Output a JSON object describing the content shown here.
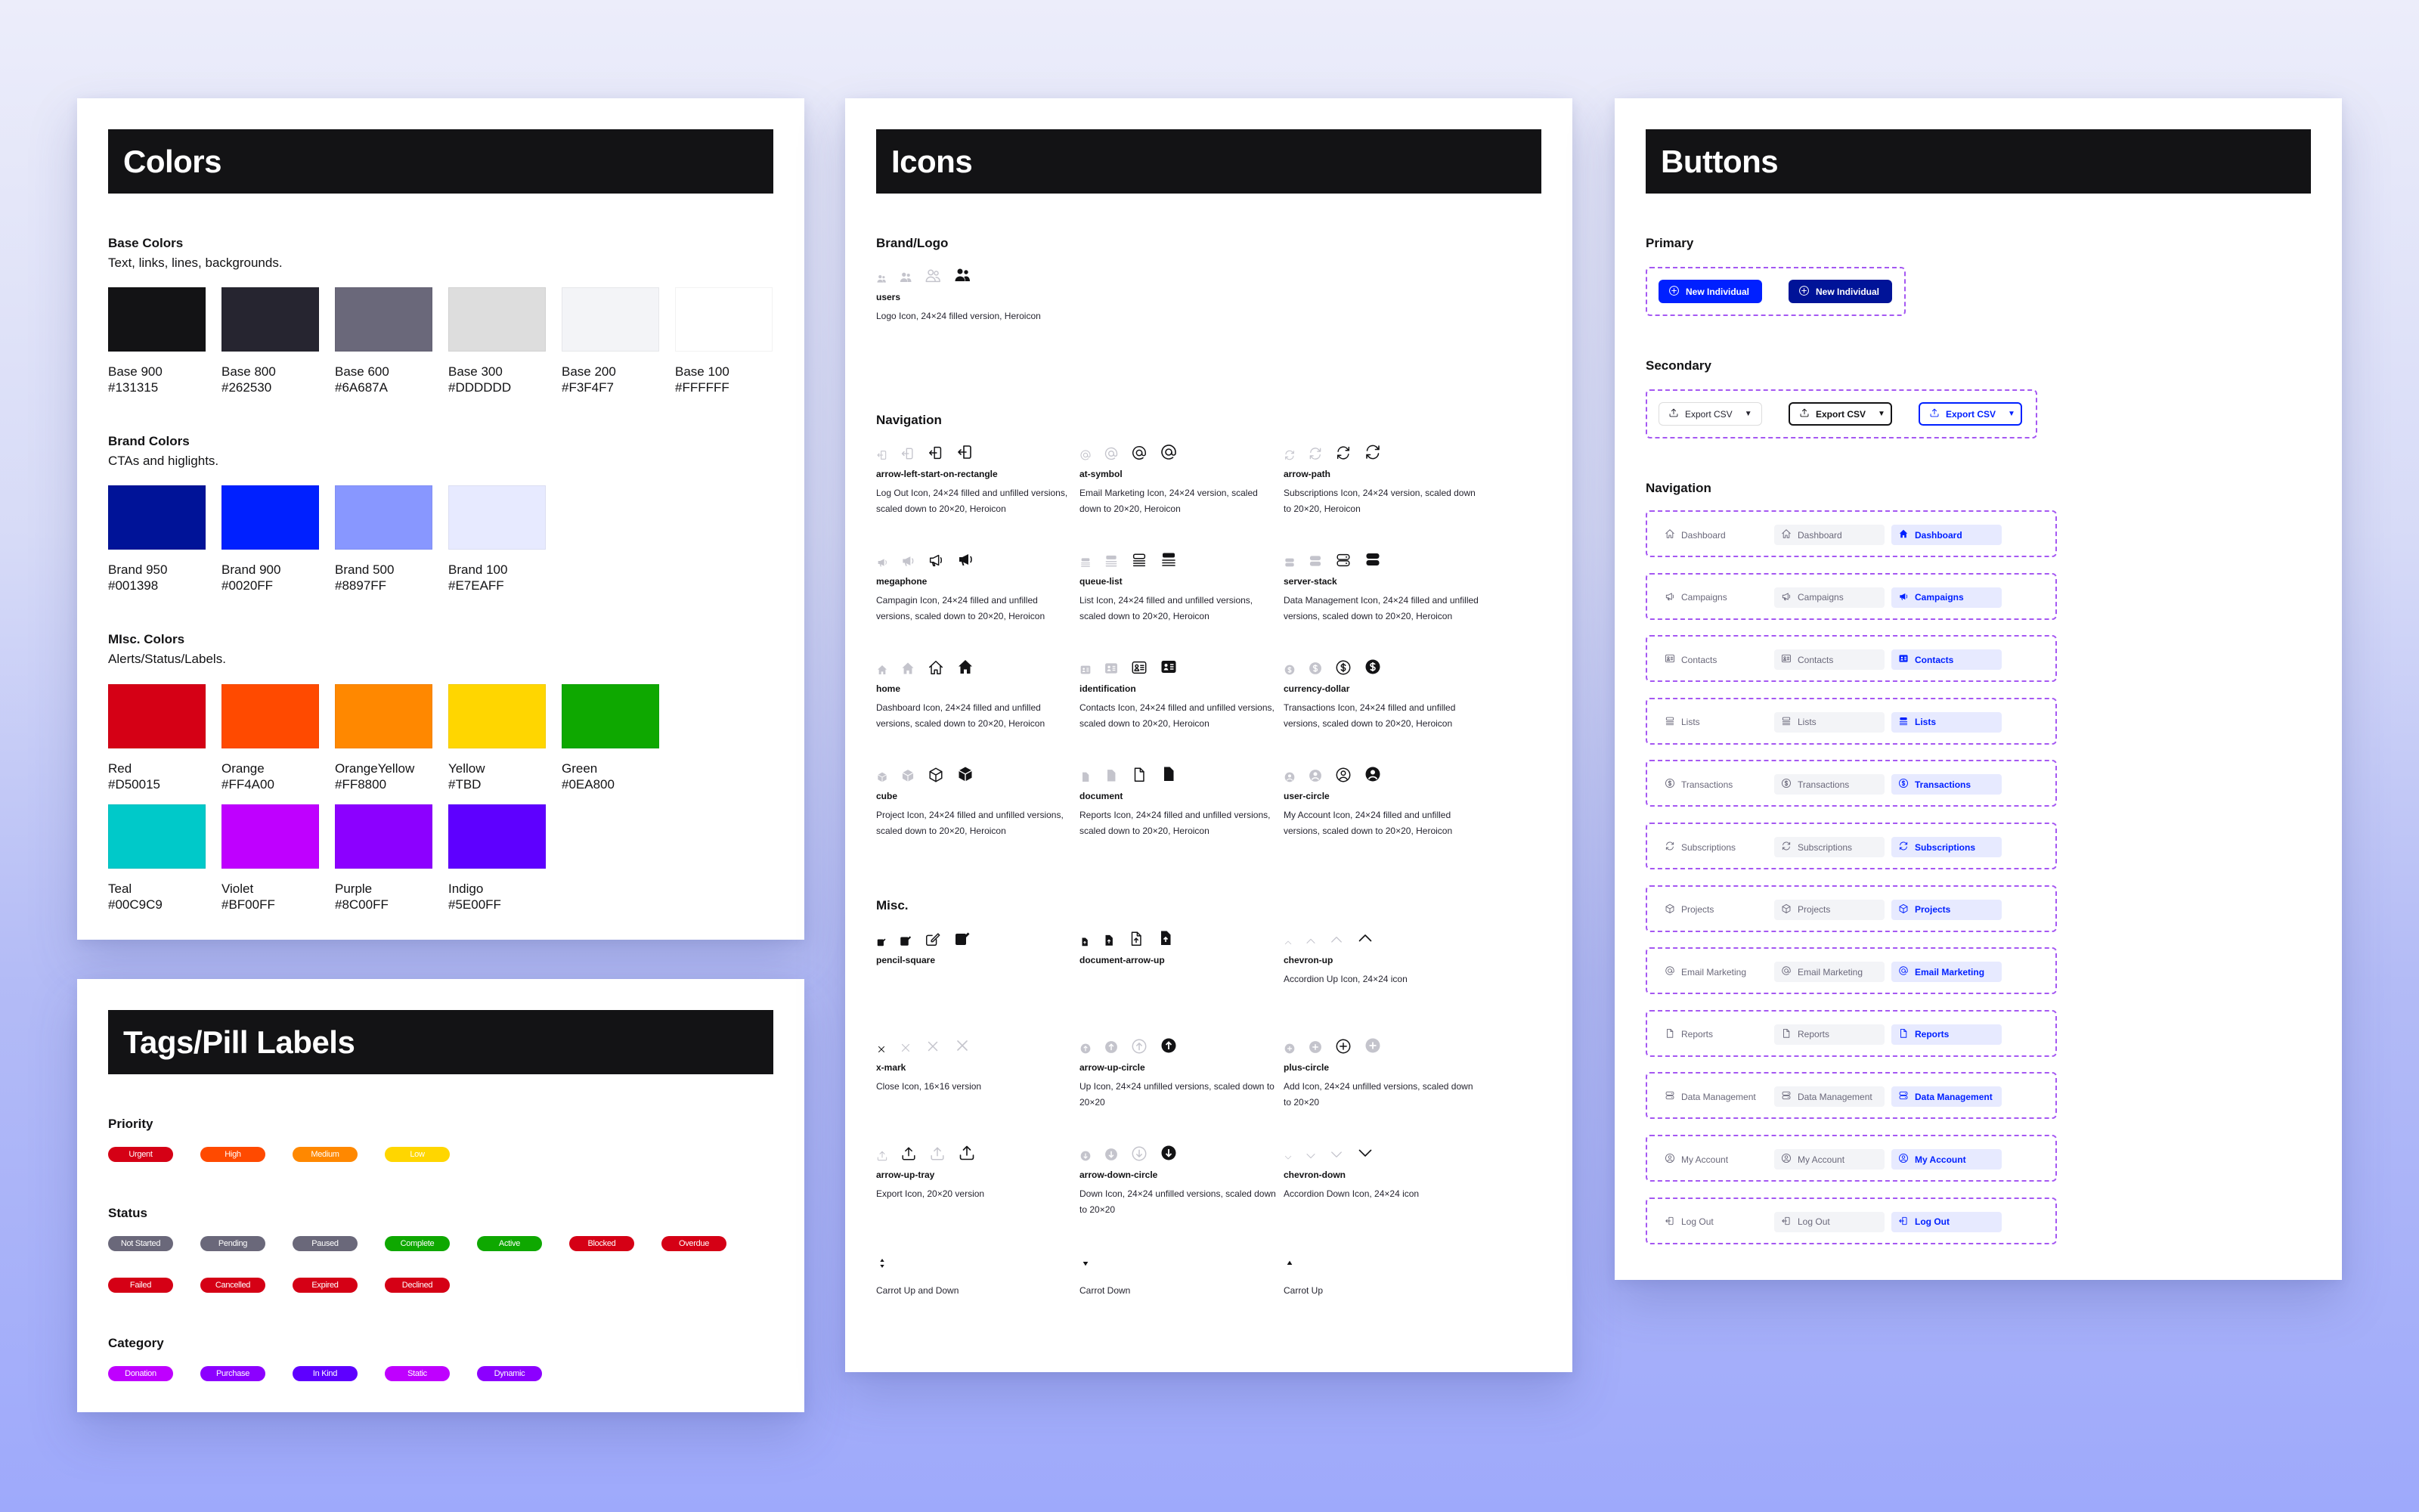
{
  "colors_panel": {
    "title": "Colors",
    "base": {
      "title": "Base Colors",
      "subtitle": "Text, links, lines, backgrounds.",
      "swatches": [
        {
          "name": "Base 900",
          "hex": "#131315"
        },
        {
          "name": "Base 800",
          "hex": "#262530"
        },
        {
          "name": "Base 600",
          "hex": "#6A687A"
        },
        {
          "name": "Base 300",
          "hex": "#DDDDDD"
        },
        {
          "name": "Base 200",
          "hex": "#F3F4F7"
        },
        {
          "name": "Base 100",
          "hex": "#FFFFFF"
        }
      ]
    },
    "brand": {
      "title": "Brand Colors",
      "subtitle": "CTAs and higlights.",
      "swatches": [
        {
          "name": "Brand 950",
          "hex": "#001398"
        },
        {
          "name": "Brand 900",
          "hex": "#0020FF"
        },
        {
          "name": "Brand 500",
          "hex": "#8897FF"
        },
        {
          "name": "Brand 100",
          "hex": "#E7EAFF"
        }
      ]
    },
    "misc": {
      "title": "MIsc. Colors",
      "subtitle": "Alerts/Status/Labels.",
      "swatches": [
        {
          "name": "Red",
          "hex": "#D50015",
          "fill": "#D50015"
        },
        {
          "name": "Orange",
          "hex": "#FF4A00",
          "fill": "#FF4A00"
        },
        {
          "name": "OrangeYellow",
          "hex": "#FF8800",
          "fill": "#FF8800"
        },
        {
          "name": "Yellow",
          "hex": "#TBD",
          "fill": "#FFD600"
        },
        {
          "name": "Green",
          "hex": "#0EA800",
          "fill": "#0EA800"
        },
        {
          "name": "Teal",
          "hex": "#00C9C9",
          "fill": "#00C9C9"
        },
        {
          "name": "Violet",
          "hex": "#BF00FF",
          "fill": "#BF00FF"
        },
        {
          "name": "Purple",
          "hex": "#8C00FF",
          "fill": "#8C00FF"
        },
        {
          "name": "Indigo",
          "hex": "#5E00FF",
          "fill": "#5E00FF"
        }
      ]
    }
  },
  "tags_panel": {
    "title": "Tags/Pill Labels",
    "priority": {
      "title": "Priority",
      "pills": [
        {
          "label": "Urgent",
          "color": "#D50015"
        },
        {
          "label": "High",
          "color": "#FF4A00"
        },
        {
          "label": "Medium",
          "color": "#FF8800"
        },
        {
          "label": "Low",
          "color": "#FFD600"
        }
      ]
    },
    "status": {
      "title": "Status",
      "pills": [
        {
          "label": "Not Started",
          "color": "#6A687A"
        },
        {
          "label": "Pending",
          "color": "#6A687A"
        },
        {
          "label": "Paused",
          "color": "#6A687A"
        },
        {
          "label": "Complete",
          "color": "#0EA800"
        },
        {
          "label": "Active",
          "color": "#0EA800"
        },
        {
          "label": "Blocked",
          "color": "#D50015"
        },
        {
          "label": "Overdue",
          "color": "#D50015"
        },
        {
          "label": "Failed",
          "color": "#D50015"
        },
        {
          "label": "Cancelled",
          "color": "#D50015"
        },
        {
          "label": "Expired",
          "color": "#D50015"
        },
        {
          "label": "Declined",
          "color": "#D50015"
        }
      ]
    },
    "category": {
      "title": "Category",
      "pills": [
        {
          "label": "Donation",
          "color": "#BF00FF"
        },
        {
          "label": "Purchase",
          "color": "#8C00FF"
        },
        {
          "label": "In Kind",
          "color": "#5E00FF"
        },
        {
          "label": "Static",
          "color": "#BF00FF"
        },
        {
          "label": "Dynamic",
          "color": "#8C00FF"
        }
      ]
    }
  },
  "icons_panel": {
    "title": "Icons",
    "brand_logo": {
      "title": "Brand/Logo",
      "items": [
        {
          "icon": "users",
          "name": "users",
          "desc": "Logo Icon, 24×24 filled version, Heroicon"
        }
      ]
    },
    "navigation": {
      "title": "Navigation",
      "items": [
        {
          "icon": "arrow-left-start-on-rectangle",
          "name": "arrow-left-start-on-rectangle",
          "desc": "Log Out Icon, 24×24 filled and unfilled versions, scaled down to 20×20, Heroicon"
        },
        {
          "icon": "at-symbol",
          "name": "at-symbol",
          "desc": "Email Marketing Icon, 24×24 version, scaled down to 20×20, Heroicon"
        },
        {
          "icon": "arrow-path",
          "name": "arrow-path",
          "desc": "Subscriptions Icon, 24×24 version, scaled down to 20×20, Heroicon"
        },
        {
          "icon": "megaphone",
          "name": "megaphone",
          "desc": "Campagin Icon, 24×24 filled and unfilled versions, scaled down to 20×20, Heroicon"
        },
        {
          "icon": "queue-list",
          "name": "queue-list",
          "desc": "List Icon, 24×24 filled and unfilled versions, scaled down to 20×20, Heroicon"
        },
        {
          "icon": "server-stack",
          "name": "server-stack",
          "desc": "Data Management Icon, 24×24 filled and unfilled versions, scaled down to 20×20, Heroicon"
        },
        {
          "icon": "home",
          "name": "home",
          "desc": "Dashboard Icon, 24×24 filled and unfilled versions, scaled down to 20×20, Heroicon"
        },
        {
          "icon": "identification",
          "name": "identification",
          "desc": "Contacts Icon, 24×24 filled and unfilled versions, scaled down to 20×20, Heroicon"
        },
        {
          "icon": "currency-dollar",
          "name": "currency-dollar",
          "desc": "Transactions Icon, 24×24 filled and unfilled versions, scaled down to 20×20, Heroicon"
        },
        {
          "icon": "cube",
          "name": "cube",
          "desc": "Project Icon, 24×24 filled and unfilled versions, scaled down to 20×20, Heroicon"
        },
        {
          "icon": "document",
          "name": "document",
          "desc": "Reports Icon, 24×24 filled and unfilled versions, scaled down to 20×20, Heroicon"
        },
        {
          "icon": "user-circle",
          "name": "user-circle",
          "desc": "My Account Icon, 24×24 filled and unfilled versions, scaled down to 20×20, Heroicon"
        }
      ]
    },
    "misc": {
      "title": "Misc.",
      "items": [
        {
          "icon": "pencil-square",
          "name": "pencil-square",
          "desc": ""
        },
        {
          "icon": "document-arrow-up",
          "name": "document-arrow-up",
          "desc": ""
        },
        {
          "icon": "chevron-up",
          "name": "chevron-up",
          "desc": "Accordion Up Icon, 24×24 icon"
        },
        {
          "icon": "x-mark",
          "name": "x-mark",
          "desc": "Close Icon, 16×16 version"
        },
        {
          "icon": "arrow-up-circle",
          "name": "arrow-up-circle",
          "desc": "Up Icon, 24×24 unfilled versions, scaled down to 20×20"
        },
        {
          "icon": "plus-circle",
          "name": "plus-circle",
          "desc": "Add Icon, 24×24 unfilled versions, scaled down to 20×20"
        },
        {
          "icon": "arrow-up-tray",
          "name": "arrow-up-tray",
          "desc": "Export Icon, 20×20 version"
        },
        {
          "icon": "arrow-down-circle",
          "name": "arrow-down-circle",
          "desc": "Down Icon, 24×24 unfilled versions, scaled down to 20×20"
        },
        {
          "icon": "chevron-down",
          "name": "chevron-down",
          "desc": "Accordion Down Icon, 24×24 icon"
        },
        {
          "icon": "caret-up-down",
          "name": "",
          "desc": "Carrot Up and Down"
        },
        {
          "icon": "caret-down",
          "name": "",
          "desc": "Carrot Down"
        },
        {
          "icon": "caret-up",
          "name": "",
          "desc": "Carrot Up"
        }
      ]
    }
  },
  "buttons_panel": {
    "title": "Buttons",
    "primary": {
      "title": "Primary",
      "buttons": [
        {
          "label": "New Individual",
          "icon": "plus-circle",
          "color": "#0020FF",
          "state": "default"
        },
        {
          "label": "New Individual",
          "icon": "plus-circle",
          "color": "#001398",
          "state": "hover"
        }
      ]
    },
    "secondary": {
      "title": "Secondary",
      "buttons": [
        {
          "label": "Export CSV",
          "icon": "arrow-up-tray",
          "caret": "▼",
          "state": "default"
        },
        {
          "label": "Export CSV",
          "icon": "arrow-up-tray",
          "caret": "▼",
          "state": "hover"
        },
        {
          "label": "Export CSV",
          "icon": "arrow-up-tray",
          "caret": "▼",
          "state": "active"
        }
      ]
    },
    "navigation": {
      "title": "Navigation",
      "items": [
        {
          "label": "Dashboard",
          "icon": "home"
        },
        {
          "label": "Campaigns",
          "icon": "megaphone"
        },
        {
          "label": "Contacts",
          "icon": "identification"
        },
        {
          "label": "Lists",
          "icon": "queue-list"
        },
        {
          "label": "Transactions",
          "icon": "currency-dollar"
        },
        {
          "label": "Subscriptions",
          "icon": "arrow-path"
        },
        {
          "label": "Projects",
          "icon": "cube"
        },
        {
          "label": "Email Marketing",
          "icon": "at-symbol"
        },
        {
          "label": "Reports",
          "icon": "document"
        },
        {
          "label": "Data Management",
          "icon": "server-stack"
        },
        {
          "label": "My Account",
          "icon": "user-circle"
        },
        {
          "label": "Log Out",
          "icon": "arrow-left-start-on-rectangle"
        }
      ]
    }
  },
  "theme": {
    "brand": "#0020FF",
    "brand_dark": "#001398",
    "dash_border": "#A558F2",
    "header_bg": "#131315"
  }
}
